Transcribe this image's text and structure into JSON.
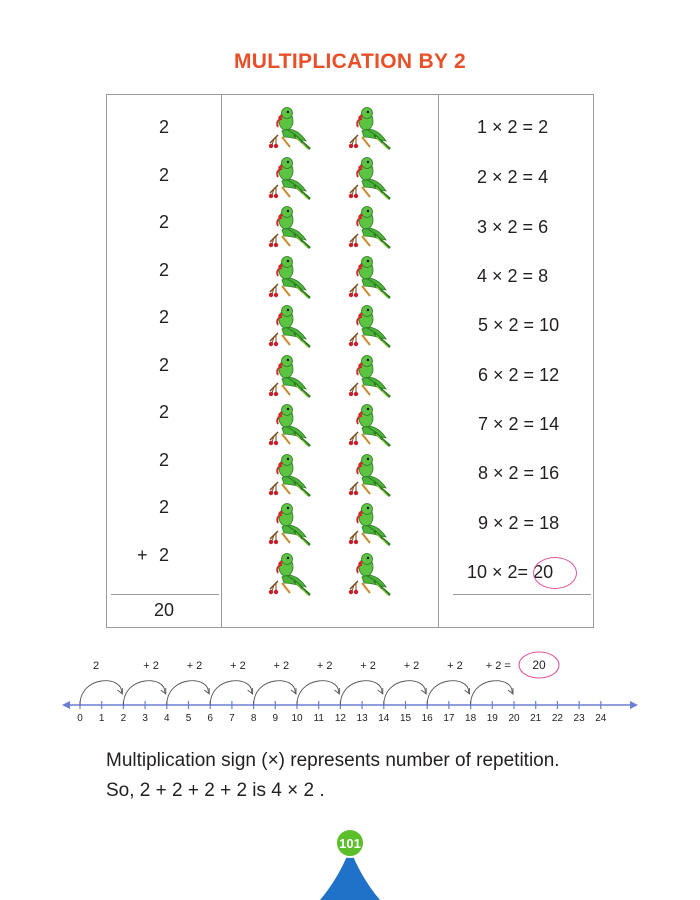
{
  "title": "MULTIPLICATION BY 2",
  "addends": [
    "2",
    "2",
    "2",
    "2",
    "2",
    "2",
    "2",
    "2",
    "2",
    "2"
  ],
  "plus_sign": "+",
  "sum": "20",
  "parrot_rows": 10,
  "parrots_per_row": 2,
  "equations": [
    {
      "lhs": "1 × 2 = ",
      "res": "2"
    },
    {
      "lhs": "2 × 2 = ",
      "res": "4"
    },
    {
      "lhs": "3 × 2 = ",
      "res": "6"
    },
    {
      "lhs": "4 × 2 = ",
      "res": "8"
    },
    {
      "lhs": "5 × 2 = ",
      "res": "10"
    },
    {
      "lhs": "6 × 2 = ",
      "res": "12"
    },
    {
      "lhs": "7 × 2 = ",
      "res": "14"
    },
    {
      "lhs": "8 × 2 = ",
      "res": "16"
    },
    {
      "lhs": "9 × 2 = ",
      "res": "18"
    },
    {
      "lhs": "10  ×  2= ",
      "res": "20"
    }
  ],
  "number_line": {
    "ticks": [
      "0",
      "1",
      "2",
      "3",
      "4",
      "5",
      "6",
      "7",
      "8",
      "9",
      "10",
      "11",
      "12",
      "13",
      "14",
      "15",
      "16",
      "17",
      "18",
      "19",
      "20",
      "21",
      "22",
      "23",
      "24"
    ],
    "hop_labels": [
      "2",
      "+ 2",
      "+ 2",
      "+ 2",
      "+ 2",
      "+ 2",
      "+ 2",
      "+ 2",
      "+ 2",
      "+ 2 ="
    ],
    "result": "20",
    "color": "#6a7fd0"
  },
  "sentence1": "Multiplication sign (×) represents number of repetition.",
  "sentence2": "So, 2 + 2 + 2 + 2   is   4 × 2 .",
  "page_number": "101",
  "colors": {
    "title": "#e8502a",
    "badge_green": "#5bbf2a",
    "badge_blue": "#1f72c8",
    "circle": "#e0559a"
  }
}
